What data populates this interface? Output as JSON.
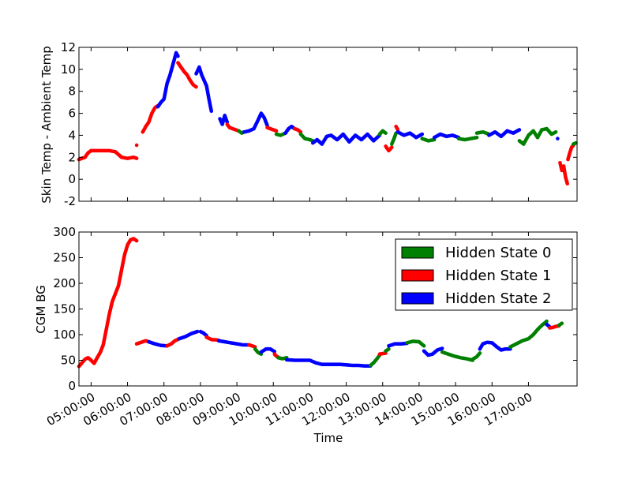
{
  "chart_data": [
    {
      "type": "scatter",
      "title": "",
      "xlabel": "",
      "ylabel": "Skin Temp - Ambient Temp",
      "xlim": [
        "04:40:00",
        "18:20:00"
      ],
      "ylim": [
        -2,
        12
      ],
      "yticks": [
        -2,
        0,
        2,
        4,
        6,
        8,
        10,
        12
      ],
      "grid": false,
      "segments": [
        {
          "state": 1,
          "x": [
            "04:40",
            "04:45",
            "04:50",
            "04:55",
            "05:00",
            "05:10",
            "05:20",
            "05:30",
            "05:40",
            "05:50",
            "06:00",
            "06:10",
            "06:15"
          ],
          "y": [
            1.8,
            1.9,
            2.0,
            2.4,
            2.6,
            2.6,
            2.6,
            2.6,
            2.5,
            2.0,
            1.9,
            2.0,
            1.9
          ]
        },
        {
          "state": 1,
          "x": [
            "06:15"
          ],
          "y": [
            3.1
          ]
        },
        {
          "state": 1,
          "x": [
            "06:25",
            "06:30",
            "06:35",
            "06:40",
            "06:45",
            "06:50"
          ],
          "y": [
            4.3,
            4.8,
            5.2,
            6.0,
            6.5,
            6.7
          ]
        },
        {
          "state": 2,
          "x": [
            "06:50",
            "06:55",
            "07:00",
            "07:05",
            "07:10",
            "07:15",
            "07:20",
            "07:23"
          ],
          "y": [
            6.6,
            7.0,
            7.3,
            8.7,
            9.5,
            10.5,
            11.5,
            11.2
          ]
        },
        {
          "state": 1,
          "x": [
            "07:23",
            "07:28",
            "07:33",
            "07:38",
            "07:43",
            "07:48",
            "07:53"
          ],
          "y": [
            10.6,
            10.2,
            9.8,
            9.5,
            9.0,
            8.6,
            8.4
          ]
        },
        {
          "state": 2,
          "x": [
            "07:53",
            "07:58",
            "08:02",
            "08:06",
            "08:10",
            "08:14",
            "08:18"
          ],
          "y": [
            9.6,
            10.2,
            9.5,
            9.0,
            8.5,
            7.3,
            6.2
          ]
        },
        {
          "state": 2,
          "x": [
            "08:32",
            "08:36",
            "08:40",
            "08:44"
          ],
          "y": [
            5.5,
            5.0,
            5.8,
            5.2
          ]
        },
        {
          "state": 1,
          "x": [
            "08:44",
            "08:48",
            "08:53",
            "08:58",
            "09:03"
          ],
          "y": [
            5.0,
            4.7,
            4.6,
            4.5,
            4.4
          ]
        },
        {
          "state": 0,
          "x": [
            "09:03",
            "09:08",
            "09:12"
          ],
          "y": [
            4.4,
            4.2,
            4.3
          ]
        },
        {
          "state": 2,
          "x": [
            "09:12",
            "09:20",
            "09:28",
            "09:35",
            "09:40",
            "09:45",
            "09:50"
          ],
          "y": [
            4.3,
            4.4,
            4.6,
            5.4,
            6.0,
            5.6,
            4.9
          ]
        },
        {
          "state": 1,
          "x": [
            "09:50",
            "09:55",
            "10:00",
            "10:05"
          ],
          "y": [
            4.7,
            4.6,
            4.5,
            4.4
          ]
        },
        {
          "state": 0,
          "x": [
            "10:05",
            "10:12",
            "10:20"
          ],
          "y": [
            4.1,
            4.0,
            4.2
          ]
        },
        {
          "state": 2,
          "x": [
            "10:20",
            "10:25",
            "10:30",
            "10:35"
          ],
          "y": [
            4.2,
            4.6,
            4.8,
            4.6
          ]
        },
        {
          "state": 1,
          "x": [
            "10:35",
            "10:40",
            "10:45"
          ],
          "y": [
            4.6,
            4.5,
            4.3
          ]
        },
        {
          "state": 0,
          "x": [
            "10:45",
            "10:52",
            "11:00",
            "11:05"
          ],
          "y": [
            4.1,
            3.7,
            3.6,
            3.5
          ]
        },
        {
          "state": 2,
          "x": [
            "11:05",
            "11:12",
            "11:20",
            "11:28",
            "11:35",
            "11:45",
            "11:55",
            "12:05",
            "12:15",
            "12:25",
            "12:35",
            "12:45",
            "12:55"
          ],
          "y": [
            3.3,
            3.6,
            3.2,
            3.9,
            4.0,
            3.6,
            4.1,
            3.4,
            4.0,
            3.6,
            4.1,
            3.5,
            4.0
          ]
        },
        {
          "state": 0,
          "x": [
            "12:55",
            "13:00",
            "13:05"
          ],
          "y": [
            4.1,
            4.4,
            4.2
          ]
        },
        {
          "state": 1,
          "x": [
            "13:05",
            "13:10",
            "13:15"
          ],
          "y": [
            3.0,
            2.6,
            2.9
          ]
        },
        {
          "state": 0,
          "x": [
            "13:15",
            "13:18",
            "13:22"
          ],
          "y": [
            3.2,
            3.6,
            4.2
          ]
        },
        {
          "state": 1,
          "x": [
            "13:22",
            "13:25"
          ],
          "y": [
            4.8,
            4.5
          ]
        },
        {
          "state": 2,
          "x": [
            "13:25",
            "13:35",
            "13:45",
            "13:55",
            "14:05"
          ],
          "y": [
            4.3,
            4.0,
            4.2,
            3.8,
            4.1
          ]
        },
        {
          "state": 0,
          "x": [
            "14:05",
            "14:15",
            "14:25"
          ],
          "y": [
            3.7,
            3.5,
            3.6
          ]
        },
        {
          "state": 2,
          "x": [
            "14:25",
            "14:35",
            "14:45",
            "14:55",
            "15:05"
          ],
          "y": [
            3.8,
            4.1,
            3.9,
            4.0,
            3.8
          ]
        },
        {
          "state": 0,
          "x": [
            "15:05",
            "15:15",
            "15:25",
            "15:35"
          ],
          "y": [
            3.7,
            3.6,
            3.7,
            3.8
          ]
        },
        {
          "state": 0,
          "x": [
            "15:35",
            "15:45",
            "15:55"
          ],
          "y": [
            4.2,
            4.3,
            4.1
          ]
        },
        {
          "state": 2,
          "x": [
            "15:55",
            "16:05",
            "16:15",
            "16:25",
            "16:35",
            "16:45"
          ],
          "y": [
            4.0,
            4.3,
            3.9,
            4.4,
            4.2,
            4.5
          ]
        },
        {
          "state": 0,
          "x": [
            "16:45",
            "16:52",
            "17:00",
            "17:08",
            "17:15",
            "17:22",
            "17:30",
            "17:38",
            "17:45"
          ],
          "y": [
            3.5,
            3.2,
            4.0,
            4.4,
            3.8,
            4.5,
            4.6,
            4.1,
            4.3
          ]
        },
        {
          "state": 2,
          "x": [
            "17:48"
          ],
          "y": [
            3.7
          ]
        },
        {
          "state": 1,
          "x": [
            "17:52",
            "17:55",
            "17:58",
            "18:01",
            "18:04"
          ],
          "y": [
            1.5,
            0.8,
            1.2,
            0.2,
            -0.4
          ]
        },
        {
          "state": 1,
          "x": [
            "18:05",
            "18:08",
            "18:11",
            "18:14"
          ],
          "y": [
            1.8,
            2.4,
            2.9,
            3.1
          ]
        },
        {
          "state": 0,
          "x": [
            "18:14",
            "18:18"
          ],
          "y": [
            3.2,
            3.3
          ]
        }
      ]
    },
    {
      "type": "scatter",
      "title": "",
      "xlabel": "Time",
      "ylabel": "CGM BG",
      "xlim": [
        "04:40:00",
        "18:20:00"
      ],
      "ylim": [
        0,
        300
      ],
      "yticks": [
        0,
        50,
        100,
        150,
        200,
        250,
        300
      ],
      "xticks": [
        "05:00:00",
        "06:00:00",
        "07:00:00",
        "08:00:00",
        "09:00:00",
        "10:00:00",
        "11:00:00",
        "12:00:00",
        "13:00:00",
        "14:00:00",
        "15:00:00",
        "16:00:00",
        "17:00:00"
      ],
      "grid": false,
      "legend": {
        "position": "top-right",
        "entries": [
          {
            "label": "Hidden State 0",
            "color": "#008000"
          },
          {
            "label": "Hidden State 1",
            "color": "#ff0000"
          },
          {
            "label": "Hidden State 2",
            "color": "#0000ff"
          }
        ]
      },
      "segments": [
        {
          "state": 1,
          "x": [
            "04:40",
            "04:45",
            "04:50",
            "04:55",
            "05:00",
            "05:05",
            "05:10",
            "05:15",
            "05:20",
            "05:25",
            "05:30",
            "05:35",
            "05:40",
            "05:45",
            "05:50",
            "05:55",
            "06:00",
            "06:05",
            "06:10",
            "06:15"
          ],
          "y": [
            38,
            45,
            52,
            55,
            50,
            44,
            55,
            65,
            80,
            110,
            140,
            165,
            180,
            195,
            225,
            255,
            275,
            285,
            287,
            283
          ]
        },
        {
          "state": 1,
          "x": [
            "06:15",
            "06:20",
            "06:25",
            "06:30",
            "06:35"
          ],
          "y": [
            82,
            84,
            86,
            88,
            86
          ]
        },
        {
          "state": 2,
          "x": [
            "06:35",
            "06:45",
            "06:55",
            "07:05"
          ],
          "y": [
            86,
            82,
            79,
            78
          ]
        },
        {
          "state": 1,
          "x": [
            "07:05",
            "07:12",
            "07:18",
            "07:25"
          ],
          "y": [
            78,
            82,
            88,
            92
          ]
        },
        {
          "state": 2,
          "x": [
            "07:25",
            "07:35",
            "07:45",
            "07:55"
          ],
          "y": [
            92,
            96,
            102,
            106
          ]
        },
        {
          "state": 2,
          "x": [
            "08:00",
            "08:05",
            "08:10"
          ],
          "y": [
            106,
            103,
            98
          ]
        },
        {
          "state": 1,
          "x": [
            "08:10",
            "08:15",
            "08:20",
            "08:25",
            "08:30"
          ],
          "y": [
            95,
            92,
            90,
            90,
            89
          ]
        },
        {
          "state": 2,
          "x": [
            "08:30",
            "08:40",
            "08:50",
            "09:00",
            "09:10",
            "09:20"
          ],
          "y": [
            88,
            86,
            84,
            82,
            80,
            80
          ]
        },
        {
          "state": 1,
          "x": [
            "09:20",
            "09:25",
            "09:30"
          ],
          "y": [
            80,
            78,
            76
          ]
        },
        {
          "state": 0,
          "x": [
            "09:30",
            "09:35",
            "09:40"
          ],
          "y": [
            72,
            65,
            62
          ]
        },
        {
          "state": 2,
          "x": [
            "09:40",
            "09:48",
            "09:55",
            "10:02"
          ],
          "y": [
            66,
            72,
            72,
            67
          ]
        },
        {
          "state": 1,
          "x": [
            "10:02",
            "10:05",
            "10:08"
          ],
          "y": [
            62,
            58,
            56
          ]
        },
        {
          "state": 0,
          "x": [
            "10:08",
            "10:15",
            "10:22"
          ],
          "y": [
            55,
            53,
            55
          ]
        },
        {
          "state": 2,
          "x": [
            "10:22",
            "10:35",
            "10:48",
            "11:00",
            "11:10",
            "11:20",
            "11:30",
            "11:40",
            "11:50",
            "12:00",
            "12:10",
            "12:20",
            "12:30",
            "12:40"
          ],
          "y": [
            51,
            50,
            50,
            50,
            45,
            42,
            42,
            42,
            42,
            41,
            40,
            40,
            39,
            39
          ]
        },
        {
          "state": 0,
          "x": [
            "12:40",
            "12:45",
            "12:50",
            "12:55"
          ],
          "y": [
            40,
            45,
            52,
            60
          ]
        },
        {
          "state": 1,
          "x": [
            "12:55",
            "13:00",
            "13:05"
          ],
          "y": [
            62,
            63,
            64
          ]
        },
        {
          "state": 0,
          "x": [
            "13:05",
            "13:10"
          ],
          "y": [
            68,
            72
          ]
        },
        {
          "state": 2,
          "x": [
            "13:10",
            "13:20",
            "13:30",
            "13:40"
          ],
          "y": [
            78,
            82,
            82,
            83
          ]
        },
        {
          "state": 0,
          "x": [
            "13:40",
            "13:50",
            "14:00",
            "14:08"
          ],
          "y": [
            84,
            87,
            86,
            78
          ]
        },
        {
          "state": 2,
          "x": [
            "14:08",
            "14:15",
            "14:22",
            "14:30",
            "14:38"
          ],
          "y": [
            68,
            60,
            62,
            70,
            73
          ]
        },
        {
          "state": 0,
          "x": [
            "14:38",
            "14:48",
            "14:58",
            "15:08",
            "15:18",
            "15:28"
          ],
          "y": [
            66,
            62,
            58,
            55,
            53,
            50
          ]
        },
        {
          "state": 0,
          "x": [
            "15:28",
            "15:35",
            "15:40"
          ],
          "y": [
            52,
            57,
            64
          ]
        },
        {
          "state": 2,
          "x": [
            "15:40",
            "15:45",
            "15:52",
            "16:00",
            "16:08",
            "16:15",
            "16:22",
            "16:30"
          ],
          "y": [
            72,
            82,
            85,
            84,
            76,
            70,
            72,
            72
          ]
        },
        {
          "state": 0,
          "x": [
            "16:30",
            "16:40",
            "16:50",
            "17:00",
            "17:08",
            "17:15",
            "17:22",
            "17:30"
          ],
          "y": [
            76,
            82,
            88,
            92,
            100,
            110,
            118,
            126
          ]
        },
        {
          "state": 2,
          "x": [
            "17:30",
            "17:35"
          ],
          "y": [
            120,
            115
          ]
        },
        {
          "state": 1,
          "x": [
            "17:35",
            "17:40",
            "17:45",
            "17:50"
          ],
          "y": [
            113,
            114,
            116,
            117
          ]
        },
        {
          "state": 0,
          "x": [
            "17:50",
            "17:55"
          ],
          "y": [
            118,
            122
          ]
        }
      ]
    }
  ],
  "colors": {
    "state0": "#008000",
    "state1": "#ff0000",
    "state2": "#0000ff"
  }
}
